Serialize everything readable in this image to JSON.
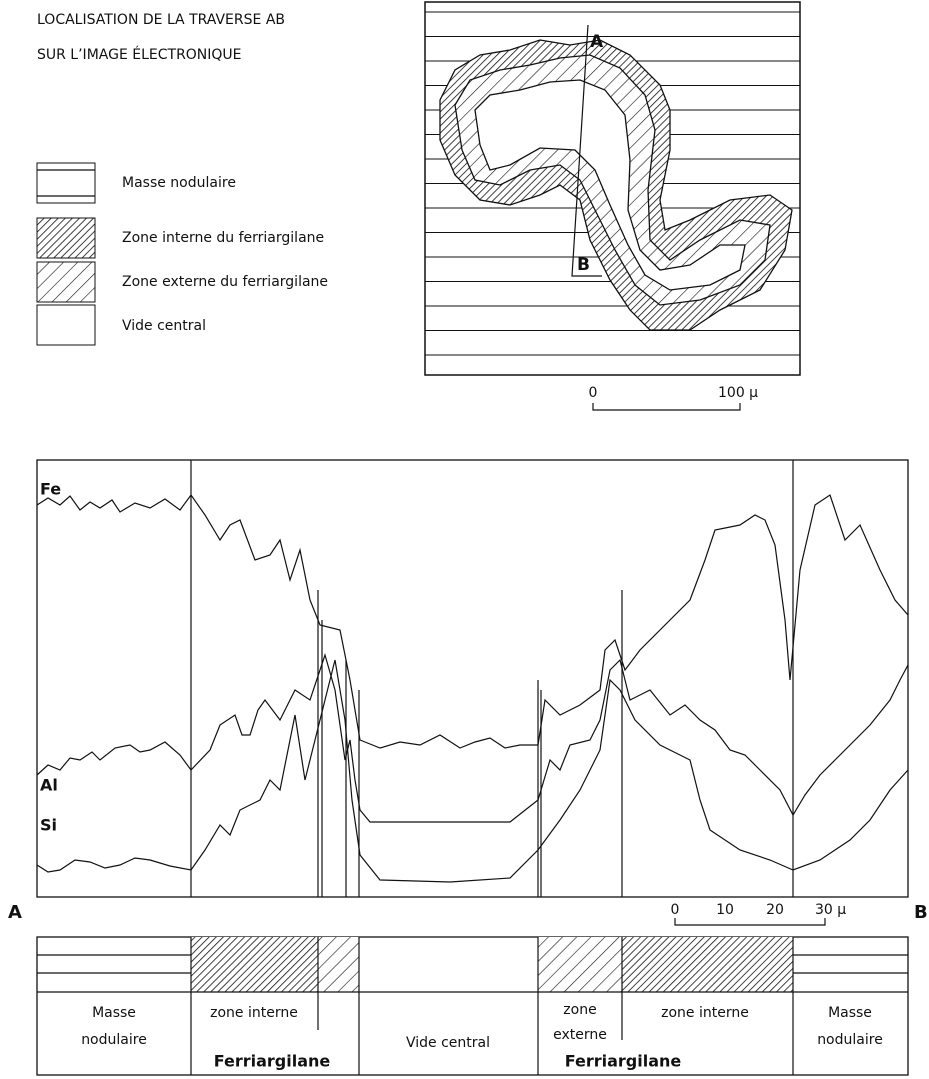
{
  "header": {
    "lines": [
      "LOCALISATION DE LA TRAVERSE AB",
      "SUR L’IMAGE ÉLECTRONIQUE"
    ]
  },
  "legend": [
    {
      "label": "Masse nodulaire"
    },
    {
      "label": "Zone interne du ferriargilane"
    },
    {
      "label": "Zone externe du ferriargilane"
    },
    {
      "label": "Vide central"
    }
  ],
  "map": {
    "point_a": "A",
    "point_b": "B",
    "scale": [
      "0",
      "100 µ"
    ]
  },
  "profile": {
    "elements": [
      "Fe",
      "Al",
      "Si"
    ],
    "start": "A",
    "end": "B",
    "scale": [
      "0",
      "10",
      "20",
      "30 µ"
    ]
  },
  "zones": [
    {
      "lines": [
        "Masse",
        "nodulaire"
      ]
    },
    {
      "lines": [
        "zone interne"
      ]
    },
    {
      "lines": [
        "Vide central"
      ]
    },
    {
      "lines": [
        "zone",
        "externe"
      ]
    },
    {
      "lines": [
        "zone interne"
      ]
    },
    {
      "lines": [
        "Masse",
        "nodulaire"
      ]
    }
  ],
  "groups": [
    "Ferriargilane",
    "Ferriargilane"
  ]
}
